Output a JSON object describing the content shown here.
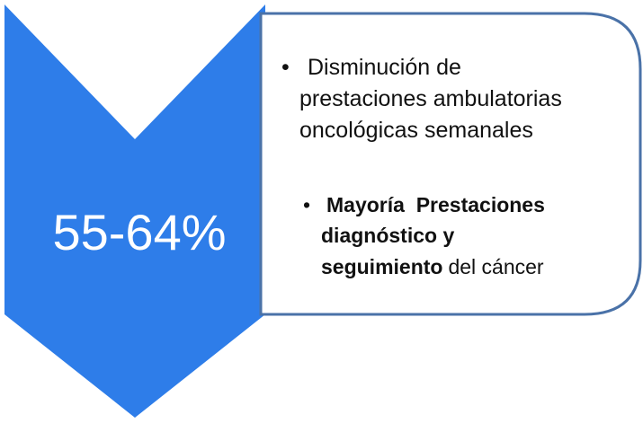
{
  "highlight": "55-64%",
  "bullets": [
    {
      "lines": [
        "Disminución de",
        "prestaciones ambulatorias",
        "oncológicas semanales"
      ]
    },
    {
      "bold_lines": [
        "Mayoría  Prestaciones",
        "diagnóstico y",
        "seguimiento"
      ],
      "tail": "del cáncer"
    }
  ]
}
